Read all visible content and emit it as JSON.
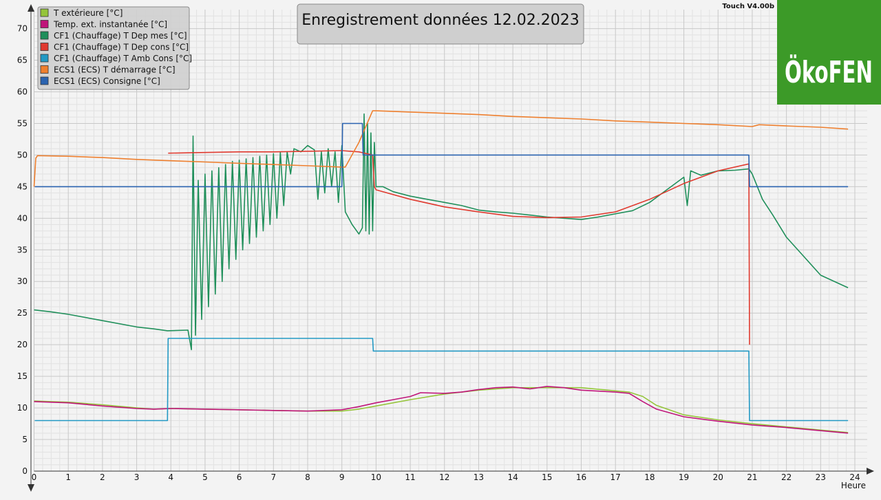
{
  "title": "Enregistrement données  12.02.2023",
  "version_label": "Touch V4.00b",
  "logo": {
    "text": "ÖkoFEN",
    "bg_color": "#3c9a28"
  },
  "chart_data": {
    "type": "line",
    "xlabel": "Heure",
    "ylabel": "",
    "xlim": [
      0,
      24
    ],
    "ylim": [
      0,
      73
    ],
    "x_ticks": [
      0,
      1,
      2,
      3,
      4,
      5,
      6,
      7,
      8,
      9,
      10,
      11,
      12,
      13,
      14,
      15,
      16,
      17,
      18,
      19,
      20,
      21,
      22,
      23,
      24
    ],
    "y_ticks": [
      0,
      5,
      10,
      15,
      20,
      25,
      30,
      35,
      40,
      45,
      50,
      55,
      60,
      65,
      70
    ],
    "grid": true,
    "legend_position": "top-left",
    "series": [
      {
        "name": "T extérieure [°C]",
        "color": "#95c53a",
        "x": [
          0,
          0.5,
          1,
          2,
          3,
          3.5,
          4,
          5,
          6,
          7,
          8,
          9,
          9.5,
          10,
          11,
          12,
          13,
          14,
          15,
          16,
          17,
          17.4,
          17.8,
          18.2,
          19,
          20,
          21,
          22,
          23,
          23.8
        ],
        "y": [
          11.1,
          11,
          10.9,
          10.5,
          10,
          9.8,
          9.9,
          9.8,
          9.7,
          9.6,
          9.5,
          9.5,
          9.8,
          10.3,
          11.3,
          12.2,
          12.8,
          13.2,
          13.2,
          13.2,
          12.7,
          12.5,
          11.8,
          10.4,
          8.9,
          8.1,
          7.5,
          7,
          6.5,
          6.1
        ]
      },
      {
        "name": "Temp. ext. instantanée [°C]",
        "color": "#c0157a",
        "x": [
          0,
          0.5,
          1,
          2,
          3,
          3.5,
          4,
          5,
          6,
          7,
          8,
          9,
          9.5,
          10,
          10.5,
          11,
          11.3,
          12,
          12.5,
          13,
          13.5,
          14,
          14.5,
          15,
          15.5,
          16,
          17,
          17.4,
          17.8,
          18.2,
          19,
          20,
          21,
          22,
          23,
          23.8
        ],
        "y": [
          11,
          10.9,
          10.8,
          10.3,
          9.9,
          9.8,
          9.9,
          9.8,
          9.7,
          9.6,
          9.5,
          9.7,
          10.2,
          10.8,
          11.3,
          11.8,
          12.4,
          12.3,
          12.5,
          12.9,
          13.2,
          13.3,
          13,
          13.4,
          13.2,
          12.8,
          12.5,
          12.3,
          11,
          9.8,
          8.6,
          7.9,
          7.3,
          6.9,
          6.4,
          6
        ]
      },
      {
        "name": "CF1 (Chauffage) T Dep mes [°C]",
        "color": "#1f8f5a",
        "x": [
          0,
          0.5,
          1,
          2,
          3,
          3.5,
          3.9,
          4.5,
          4.6,
          4.65,
          4.72,
          4.8,
          4.9,
          5,
          5.1,
          5.2,
          5.3,
          5.4,
          5.5,
          5.6,
          5.7,
          5.8,
          5.9,
          6,
          6.1,
          6.2,
          6.3,
          6.4,
          6.5,
          6.6,
          6.7,
          6.8,
          6.9,
          7,
          7.1,
          7.2,
          7.3,
          7.4,
          7.5,
          7.6,
          7.8,
          8,
          8.2,
          8.3,
          8.4,
          8.5,
          8.6,
          8.7,
          8.8,
          8.9,
          9,
          9.1,
          9.3,
          9.5,
          9.6,
          9.65,
          9.7,
          9.75,
          9.8,
          9.85,
          9.9,
          9.95,
          10,
          10.2,
          10.5,
          11,
          11.5,
          12,
          12.5,
          13,
          13.5,
          14,
          14.5,
          15,
          15.5,
          16,
          16.5,
          17,
          17.5,
          18,
          18.5,
          19,
          19.1,
          19.2,
          19.5,
          20,
          20.5,
          20.9,
          21,
          21.3,
          21.6,
          22,
          22.5,
          23,
          23.8
        ],
        "y": [
          25.5,
          25.2,
          24.8,
          23.8,
          22.8,
          22.5,
          22.2,
          22.3,
          19.2,
          53,
          21.5,
          46,
          24,
          47,
          26,
          47.5,
          28,
          48,
          30,
          48.5,
          32,
          49,
          33.5,
          49.2,
          35,
          49.4,
          36,
          49.6,
          37,
          49.8,
          38,
          50,
          39,
          50.2,
          40,
          50.4,
          42,
          50.5,
          47,
          51,
          50.5,
          51.5,
          50.8,
          43,
          50.5,
          44,
          51,
          45,
          50.5,
          42.5,
          51.5,
          41,
          39,
          37.5,
          38.5,
          56.5,
          38,
          55,
          37.5,
          53.5,
          38,
          52,
          45,
          45,
          44.2,
          43.5,
          43,
          42.5,
          42,
          41.3,
          41,
          40.8,
          40.5,
          40.2,
          40,
          39.8,
          40.2,
          40.7,
          41.2,
          42.5,
          44.5,
          46.5,
          42,
          47.5,
          46.8,
          47.5,
          47.6,
          47.8,
          47,
          43,
          40.5,
          37,
          34,
          31,
          29
        ]
      },
      {
        "name": "CF1 (Chauffage) T Dep cons [°C]",
        "color": "#e03a2f",
        "x": [
          0,
          3.9,
          3.92,
          5,
          6,
          7,
          8,
          9,
          9.5,
          9.9,
          9.95,
          10,
          11,
          12,
          13,
          14,
          15,
          16,
          17,
          18,
          19,
          20,
          20.9,
          20.92,
          24
        ],
        "y": [
          null,
          null,
          50.3,
          50.4,
          50.5,
          50.5,
          50.6,
          50.7,
          50.5,
          50,
          45,
          44.5,
          43,
          41.8,
          41,
          40.3,
          40.1,
          40.2,
          41,
          43,
          45.5,
          47.5,
          48.6,
          20,
          null
        ]
      },
      {
        "name": "CF1 (Chauffage) T Amb Cons [°C]",
        "color": "#2299c4",
        "x": [
          0,
          0.02,
          3.9,
          3.92,
          9.9,
          9.92,
          20.9,
          20.92,
          23.8
        ],
        "y": [
          null,
          8,
          8,
          21,
          21,
          19,
          19,
          8,
          8
        ]
      },
      {
        "name": "ECS1 (ECS) T démarrage [°C]",
        "color": "#ee7f2e",
        "x": [
          0,
          0.05,
          0.1,
          1,
          2,
          3,
          4,
          5,
          6,
          7,
          8,
          9,
          9.1,
          9.5,
          9.9,
          10,
          11,
          12,
          13,
          14,
          15,
          16,
          17,
          18,
          19,
          20,
          21,
          21.2,
          22,
          23,
          23.8
        ],
        "y": [
          45,
          49.5,
          49.9,
          49.8,
          49.6,
          49.3,
          49.1,
          48.9,
          48.7,
          48.5,
          48.3,
          48.1,
          48.1,
          52,
          57,
          57,
          56.8,
          56.6,
          56.4,
          56.1,
          55.9,
          55.7,
          55.4,
          55.2,
          55,
          54.8,
          54.5,
          54.8,
          54.6,
          54.4,
          54.1
        ]
      },
      {
        "name": "ECS1 (ECS) Consigne [°C]",
        "color": "#2b63b0",
        "x": [
          0,
          0.02,
          9,
          9.02,
          9.6,
          9.62,
          20.9,
          20.92,
          23.8
        ],
        "y": [
          null,
          45,
          45,
          55,
          55,
          50,
          50,
          45,
          45
        ]
      }
    ]
  }
}
